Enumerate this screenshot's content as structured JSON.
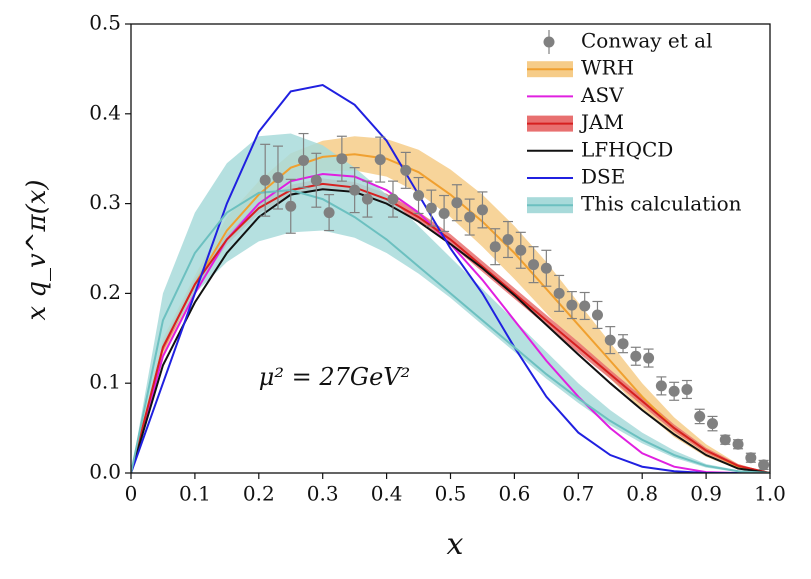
{
  "chart_data": {
    "type": "line",
    "x_label": "x",
    "y_label": "x q_v^π(x)",
    "annotation": "μ² = 27GeV²",
    "legend": "upper right",
    "xlim": [
      0,
      1
    ],
    "ylim": [
      0,
      0.5
    ],
    "xticks": [
      0,
      0.1,
      0.2,
      0.3,
      0.4,
      0.5,
      0.6,
      0.7,
      0.8,
      0.9,
      {
        "value": 1,
        "label": "1.0"
      }
    ],
    "yticks": [
      {
        "value": 0,
        "label": "0.0"
      },
      0.1,
      0.2,
      0.3,
      0.4,
      0.5
    ],
    "x": [
      0,
      0.05,
      0.1,
      0.15,
      0.2,
      0.25,
      0.3,
      0.35,
      0.4,
      0.45,
      0.5,
      0.55,
      0.6,
      0.65,
      0.7,
      0.75,
      0.8,
      0.85,
      0.9,
      0.95,
      1
    ],
    "series": [
      {
        "name": "Conway et al",
        "color": "#808080",
        "x": [
          0.21,
          0.23,
          0.25,
          0.27,
          0.29,
          0.31,
          0.33,
          0.35,
          0.37,
          0.39,
          0.41,
          0.43,
          0.45,
          0.47,
          0.49,
          0.51,
          0.53,
          0.55,
          0.57,
          0.59,
          0.61,
          0.63,
          0.65,
          0.67,
          0.69,
          0.71,
          0.73,
          0.75,
          0.77,
          0.79,
          0.81,
          0.83,
          0.85,
          0.87,
          0.89,
          0.91,
          0.93,
          0.95,
          0.97,
          0.99
        ],
        "values": [
          0.326,
          0.329,
          0.297,
          0.348,
          0.326,
          0.29,
          0.35,
          0.315,
          0.305,
          0.349,
          0.305,
          0.337,
          0.309,
          0.295,
          0.289,
          0.301,
          0.285,
          0.293,
          0.252,
          0.26,
          0.248,
          0.232,
          0.228,
          0.2,
          0.187,
          0.186,
          0.176,
          0.148,
          0.144,
          0.13,
          0.128,
          0.097,
          0.091,
          0.093,
          0.063,
          0.055,
          0.037,
          0.032,
          0.017,
          0.009
        ],
        "errors": [
          0.04,
          0.035,
          0.03,
          0.03,
          0.03,
          0.02,
          0.025,
          0.025,
          0.02,
          0.025,
          0.02,
          0.02,
          0.02,
          0.02,
          0.02,
          0.02,
          0.02,
          0.02,
          0.02,
          0.02,
          0.02,
          0.02,
          0.02,
          0.02,
          0.015,
          0.015,
          0.015,
          0.015,
          0.01,
          0.01,
          0.01,
          0.01,
          0.01,
          0.01,
          0.008,
          0.008,
          0.005,
          0.005,
          0.005,
          0.005
        ]
      },
      {
        "name": "WRH",
        "color": "#f0a030",
        "band_color": "#f6cc88",
        "values": [
          0,
          0.14,
          0.21,
          0.27,
          0.31,
          0.34,
          0.352,
          0.355,
          0.35,
          0.335,
          0.31,
          0.28,
          0.245,
          0.205,
          0.165,
          0.125,
          0.085,
          0.05,
          0.025,
          0.007,
          0
        ],
        "lower": [
          0,
          0.13,
          0.2,
          0.255,
          0.295,
          0.325,
          0.336,
          0.337,
          0.33,
          0.312,
          0.285,
          0.252,
          0.216,
          0.178,
          0.14,
          0.105,
          0.07,
          0.04,
          0.018,
          0.004,
          0
        ],
        "upper": [
          0,
          0.15,
          0.22,
          0.285,
          0.325,
          0.356,
          0.37,
          0.375,
          0.372,
          0.36,
          0.338,
          0.31,
          0.275,
          0.235,
          0.19,
          0.145,
          0.1,
          0.062,
          0.032,
          0.01,
          0
        ]
      },
      {
        "name": "ASV",
        "color": "#e020e0",
        "values": [
          0,
          0.13,
          0.2,
          0.26,
          0.3,
          0.325,
          0.333,
          0.33,
          0.315,
          0.29,
          0.255,
          0.215,
          0.17,
          0.125,
          0.085,
          0.05,
          0.022,
          0.007,
          0.001,
          0,
          0
        ]
      },
      {
        "name": "JAM",
        "color": "#d62020",
        "band_color": "#e87070",
        "values": [
          0,
          0.14,
          0.21,
          0.26,
          0.295,
          0.315,
          0.322,
          0.318,
          0.305,
          0.285,
          0.26,
          0.23,
          0.2,
          0.17,
          0.14,
          0.11,
          0.08,
          0.05,
          0.025,
          0.008,
          0
        ],
        "lower": [
          0,
          0.135,
          0.204,
          0.254,
          0.289,
          0.309,
          0.316,
          0.312,
          0.299,
          0.279,
          0.254,
          0.224,
          0.194,
          0.164,
          0.134,
          0.105,
          0.075,
          0.046,
          0.022,
          0.006,
          0
        ],
        "upper": [
          0,
          0.145,
          0.216,
          0.266,
          0.301,
          0.321,
          0.328,
          0.324,
          0.311,
          0.291,
          0.266,
          0.236,
          0.206,
          0.176,
          0.146,
          0.115,
          0.085,
          0.054,
          0.028,
          0.01,
          0
        ]
      },
      {
        "name": "LFHQCD",
        "color": "#111111",
        "values": [
          0,
          0.12,
          0.19,
          0.245,
          0.285,
          0.31,
          0.316,
          0.313,
          0.3,
          0.28,
          0.255,
          0.228,
          0.198,
          0.165,
          0.132,
          0.1,
          0.07,
          0.043,
          0.02,
          0.005,
          0
        ]
      },
      {
        "name": "DSE",
        "color": "#2020e0",
        "values": [
          0,
          0.1,
          0.2,
          0.3,
          0.38,
          0.425,
          0.432,
          0.41,
          0.37,
          0.31,
          0.25,
          0.2,
          0.14,
          0.085,
          0.045,
          0.02,
          0.007,
          0.002,
          0,
          0,
          0
        ]
      },
      {
        "name": "This calculation",
        "color": "#6cc0c0",
        "band_color": "#a8dada",
        "values": [
          0,
          0.17,
          0.245,
          0.29,
          0.312,
          0.315,
          0.305,
          0.285,
          0.26,
          0.23,
          0.2,
          0.17,
          0.14,
          0.11,
          0.083,
          0.058,
          0.037,
          0.02,
          0.008,
          0.002,
          0
        ],
        "lower": [
          0,
          0.14,
          0.2,
          0.235,
          0.258,
          0.268,
          0.27,
          0.262,
          0.245,
          0.222,
          0.195,
          0.165,
          0.135,
          0.105,
          0.078,
          0.053,
          0.033,
          0.017,
          0.006,
          0.001,
          0
        ],
        "upper": [
          0,
          0.2,
          0.29,
          0.345,
          0.375,
          0.378,
          0.365,
          0.34,
          0.31,
          0.275,
          0.24,
          0.205,
          0.17,
          0.135,
          0.1,
          0.07,
          0.045,
          0.025,
          0.01,
          0.003,
          0
        ]
      }
    ]
  }
}
